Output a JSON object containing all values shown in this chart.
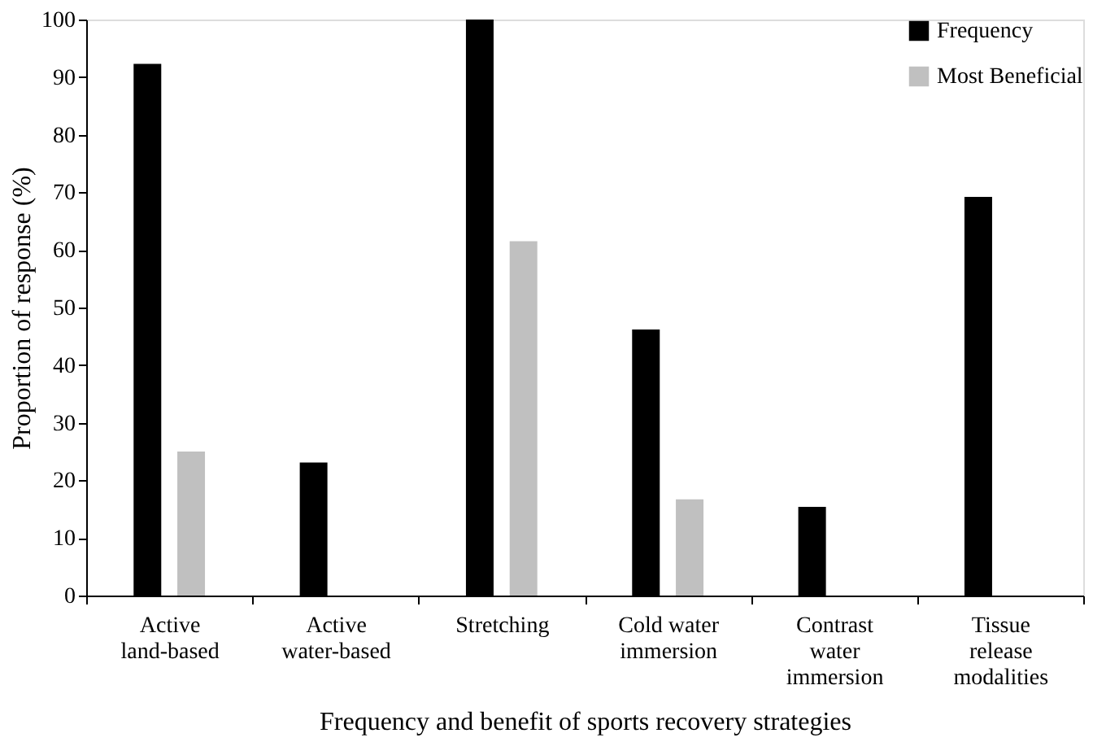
{
  "chart_data": {
    "type": "bar",
    "xlabel": "Frequency and benefit of sports recovery strategies",
    "ylabel": "Proportion of response (%)",
    "categories": [
      "Active\nland-based",
      "Active\nwater-based",
      "Stretching",
      "Cold water\nimmersion",
      "Contrast\nwater\nimmersion",
      "Tissue\nrelease\nmodalities"
    ],
    "series": [
      {
        "name": "Frequency",
        "color": "#000000",
        "values": [
          92.3,
          23.1,
          100,
          46.2,
          15.4,
          69.2
        ]
      },
      {
        "name": "Most Beneficial",
        "color": "#c0c0c0",
        "values": [
          25,
          0,
          61.5,
          16.7,
          0,
          0
        ]
      }
    ],
    "ylim": [
      0,
      100
    ],
    "yticks": [
      0,
      10,
      20,
      30,
      40,
      50,
      60,
      70,
      80,
      90,
      100
    ],
    "grid": false,
    "legend": "top right"
  }
}
